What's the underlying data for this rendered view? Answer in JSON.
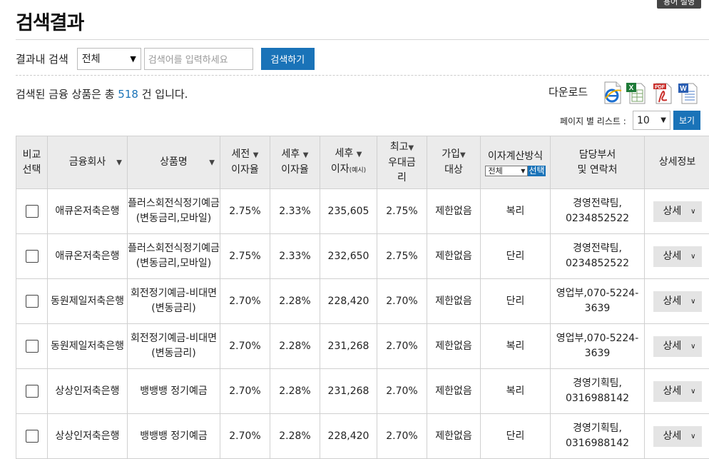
{
  "help_tab": "용어 설명",
  "page_title": "검색결과",
  "search": {
    "label": "결과내 검색",
    "scope_value": "전체",
    "placeholder": "검색어를 입력하세요",
    "button": "검색하기"
  },
  "result": {
    "prefix": "검색된 금융 상품은 총",
    "count": "518",
    "suffix": "건 입니다."
  },
  "download": {
    "label": "다운로드",
    "icons": [
      "ie-icon",
      "excel-icon",
      "pdf-icon",
      "word-icon"
    ]
  },
  "paging": {
    "label": "페이지 별 리스트 :",
    "value": "10",
    "button": "보기"
  },
  "table": {
    "headers": {
      "compare": [
        "비교",
        "선택"
      ],
      "company": "금융회사",
      "product": "상품명",
      "pre_tax": [
        "세전",
        "이자율"
      ],
      "post_tax": [
        "세후",
        "이자율"
      ],
      "interest": [
        "세후",
        "이자",
        "(예시)"
      ],
      "max_rate": [
        "최고",
        "우대금",
        "리"
      ],
      "join": [
        "가입",
        "대상"
      ],
      "calc": "이자계산방식",
      "calc_select": "전체",
      "calc_button": "선택",
      "contact": [
        "담당부서",
        "및 연락처"
      ],
      "detail": "상세정보"
    },
    "rows": [
      {
        "company": "애큐온저축은행",
        "product": [
          "플러스회전식정기예금",
          "(변동금리,모바일)"
        ],
        "pre_tax": "2.75%",
        "post_tax": "2.33%",
        "interest": "235,605",
        "max_rate": "2.75%",
        "join": "제한없음",
        "calc": "복리",
        "contact": [
          "경영전략팀,",
          "0234852522"
        ],
        "detail": "상세"
      },
      {
        "company": "애큐온저축은행",
        "product": [
          "플러스회전식정기예금",
          "(변동금리,모바일)"
        ],
        "pre_tax": "2.75%",
        "post_tax": "2.33%",
        "interest": "232,650",
        "max_rate": "2.75%",
        "join": "제한없음",
        "calc": "단리",
        "contact": [
          "경영전략팀,",
          "0234852522"
        ],
        "detail": "상세"
      },
      {
        "company": "동원제일저축은행",
        "product": [
          "회전정기예금-비대면",
          "(변동금리)"
        ],
        "pre_tax": "2.70%",
        "post_tax": "2.28%",
        "interest": "228,420",
        "max_rate": "2.70%",
        "join": "제한없음",
        "calc": "단리",
        "contact": [
          "영업부,070-5224-",
          "3639"
        ],
        "detail": "상세"
      },
      {
        "company": "동원제일저축은행",
        "product": [
          "회전정기예금-비대면",
          "(변동금리)"
        ],
        "pre_tax": "2.70%",
        "post_tax": "2.28%",
        "interest": "231,268",
        "max_rate": "2.70%",
        "join": "제한없음",
        "calc": "복리",
        "contact": [
          "영업부,070-5224-",
          "3639"
        ],
        "detail": "상세"
      },
      {
        "company": "상상인저축은행",
        "product": [
          "뱅뱅뱅 정기예금",
          ""
        ],
        "pre_tax": "2.70%",
        "post_tax": "2.28%",
        "interest": "231,268",
        "max_rate": "2.70%",
        "join": "제한없음",
        "calc": "복리",
        "contact": [
          "경영기획팀,",
          "0316988142"
        ],
        "detail": "상세"
      },
      {
        "company": "상상인저축은행",
        "product": [
          "뱅뱅뱅 정기예금",
          ""
        ],
        "pre_tax": "2.70%",
        "post_tax": "2.28%",
        "interest": "228,420",
        "max_rate": "2.70%",
        "join": "제한없음",
        "calc": "단리",
        "contact": [
          "경영기획팀,",
          "0316988142"
        ],
        "detail": "상세"
      }
    ]
  }
}
